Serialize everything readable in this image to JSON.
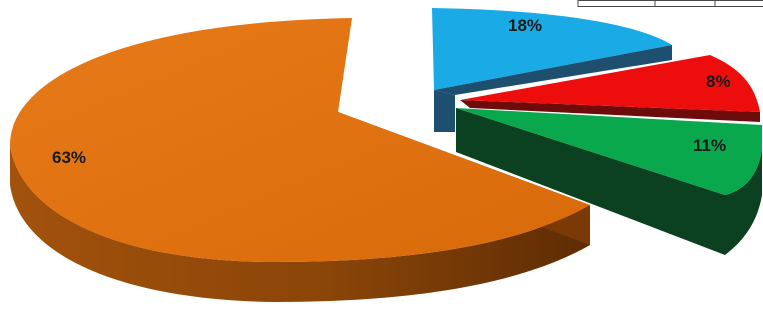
{
  "chart_data": {
    "type": "pie",
    "title": "",
    "exploded": true,
    "three_d": true,
    "slices": [
      {
        "label": "63%",
        "value": 63,
        "color": "#e07010",
        "side_color": "#7a3a06"
      },
      {
        "label": "18%",
        "value": 18,
        "color": "#1aaae6",
        "side_color": "#1e4f6e"
      },
      {
        "label": "8%",
        "value": 8,
        "color": "#ee0d0d",
        "side_color": "#6e0c0c"
      },
      {
        "label": "11%",
        "value": 11,
        "color": "#0aa84c",
        "side_color": "#0b4020"
      }
    ]
  }
}
